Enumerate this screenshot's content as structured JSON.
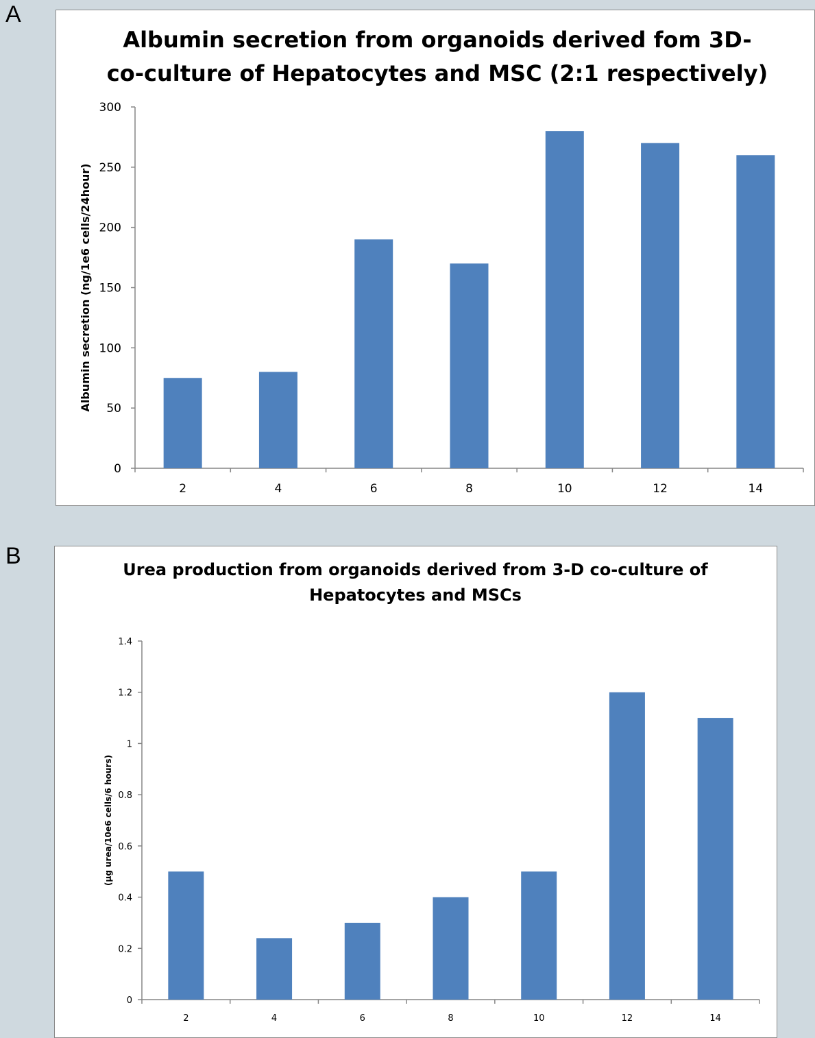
{
  "panels": {
    "a_letter": "A",
    "b_letter": "B"
  },
  "colors": {
    "bar": "#4f81bd",
    "axis": "#868686"
  },
  "chart_data": [
    {
      "id": "A",
      "type": "bar",
      "title_lines": [
        "Albumin secretion from organoids derived fom 3D-",
        "co-culture of Hepatocytes and MSC (2:1 respectively)"
      ],
      "xlabel": "",
      "ylabel": "Albumin secretion (ng/1e6 cells/24hour)",
      "categories": [
        "2",
        "4",
        "6",
        "8",
        "10",
        "12",
        "14"
      ],
      "values": [
        75,
        80,
        190,
        170,
        280,
        270,
        260
      ],
      "ylim": [
        0,
        300
      ],
      "yticks": [
        "0",
        "50",
        "100",
        "150",
        "200",
        "250",
        "300"
      ],
      "grid": false,
      "legend": "none"
    },
    {
      "id": "B",
      "type": "bar",
      "title_lines": [
        "Urea production from organoids derived from 3-D co-culture of",
        "Hepatocytes and MSCs"
      ],
      "xlabel": "",
      "ylabel": "(µg urea/10e6 cells/6 hours)",
      "categories": [
        "2",
        "4",
        "6",
        "8",
        "10",
        "12",
        "14"
      ],
      "values": [
        0.5,
        0.24,
        0.3,
        0.4,
        0.5,
        1.2,
        1.1
      ],
      "ylim": [
        0,
        1.4
      ],
      "yticks": [
        "0",
        "0.2",
        "0.4",
        "0.6",
        "0.8",
        "1",
        "1.2",
        "1.4"
      ],
      "grid": false,
      "legend": "none"
    }
  ]
}
